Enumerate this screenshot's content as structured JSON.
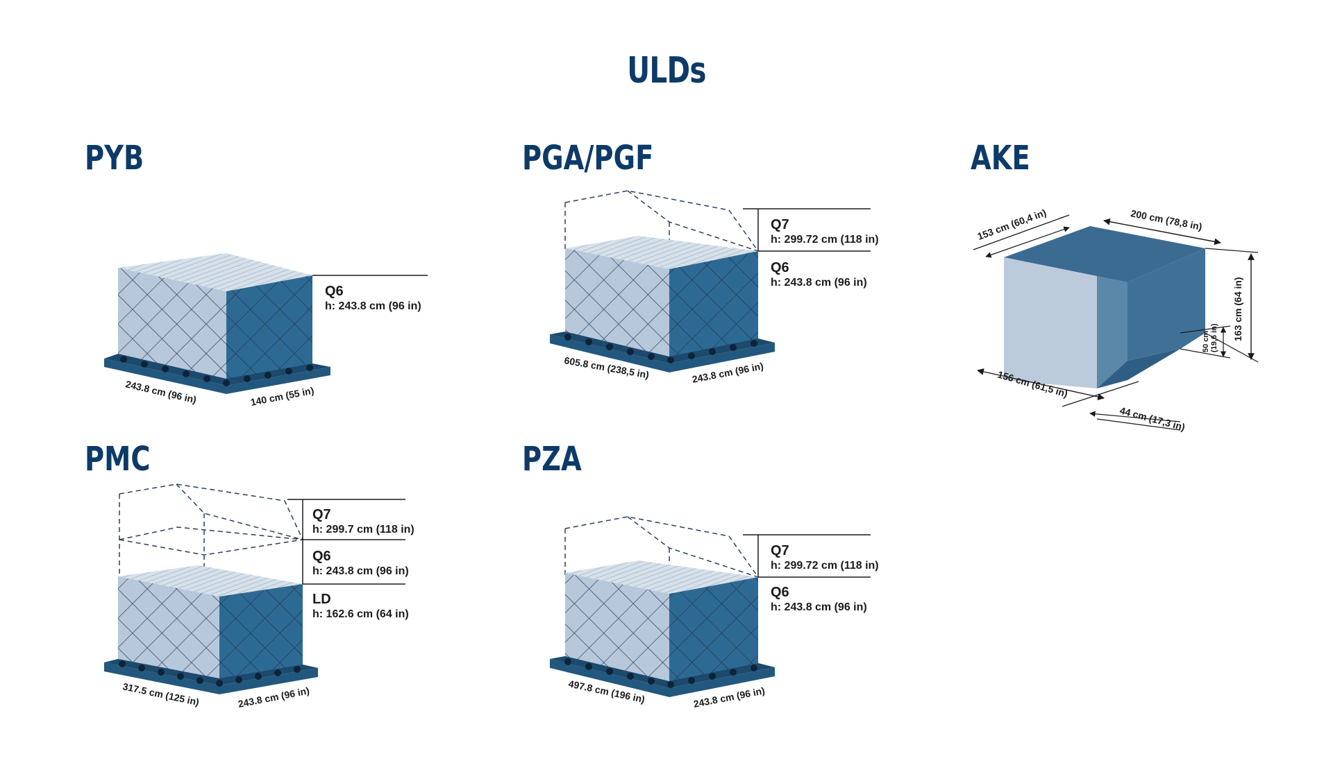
{
  "page": {
    "title": "ULDs"
  },
  "colors": {
    "title": "#0d3a68",
    "pallet": "#22587e",
    "cargo_front": "#b6c8da",
    "cargo_side": "#2d6a93",
    "cargo_top": "#dbe5ee",
    "net": "#1c2f4a",
    "ake_front": "#bccbdb",
    "ake_mid": "#5b87a8",
    "ake_side": "#3f7196",
    "ake_top": "#3c6b92"
  },
  "ulds": {
    "pyb": {
      "name": "PYB",
      "levels": [
        {
          "code": "Q6",
          "height": "h: 243.8 cm (96 in)"
        }
      ],
      "length": "243.8 cm (96 in)",
      "width": "140 cm (55 in)"
    },
    "pga": {
      "name": "PGA/PGF",
      "levels": [
        {
          "code": "Q7",
          "height": "h: 299.72 cm (118 in)"
        },
        {
          "code": "Q6",
          "height": "h: 243.8 cm (96 in)"
        }
      ],
      "length": "605.8 cm (238,5 in)",
      "width": "243.8 cm (96 in)"
    },
    "ake": {
      "name": "AKE",
      "top_depth": "153 cm (60,4 in)",
      "top_width": "200 cm (78,8 in)",
      "height": "163 cm (64 in)",
      "cut_height": "50 cm (19,6 in)",
      "cut_height_l1": "50 cm",
      "cut_height_l2": "(19,6 in)",
      "base_width": "156 cm (61,5 in)",
      "cut_depth": "44 cm (17,3 in)"
    },
    "pmc": {
      "name": "PMC",
      "levels": [
        {
          "code": "Q7",
          "height": "h: 299.7 cm (118 in)"
        },
        {
          "code": "Q6",
          "height": "h: 243.8 cm (96 in)"
        },
        {
          "code": "LD",
          "height": "h: 162.6 cm (64 in)"
        }
      ],
      "length": "317.5 cm (125 in)",
      "width": "243.8 cm (96 in)"
    },
    "pza": {
      "name": "PZA",
      "levels": [
        {
          "code": "Q7",
          "height": "h: 299.72 cm (118 in)"
        },
        {
          "code": "Q6",
          "height": "h: 243.8 cm (96 in)"
        }
      ],
      "length": "497.8 cm (196 in)",
      "width": "243.8 cm (96 in)"
    }
  }
}
